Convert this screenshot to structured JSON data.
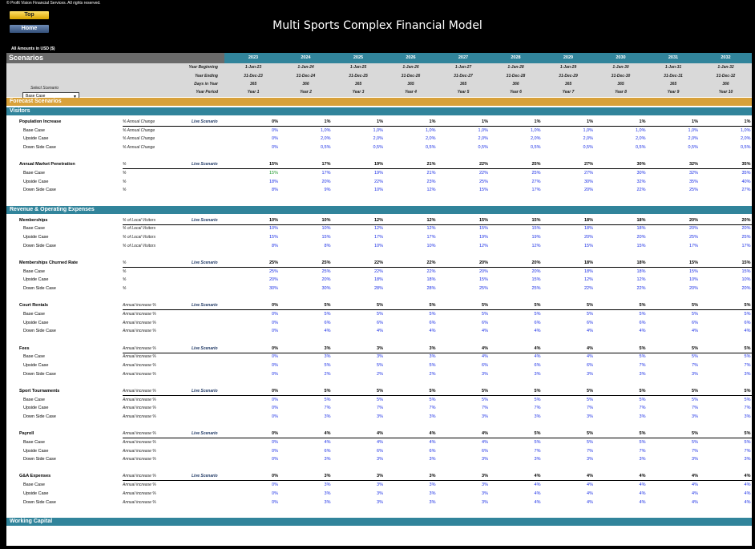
{
  "header": {
    "copyright": "© Profit Vision Financial Services. All rights reserved.",
    "btn_top": "Top",
    "btn_home": "Home",
    "title": "Multi Sports Complex Financial Model",
    "amounts": "All Amounts in  USD ($)"
  },
  "scenarios": {
    "label": "Scenarios",
    "select_label": "Select Scenario",
    "selected": "Base Case",
    "years": [
      "2023",
      "2024",
      "2025",
      "2026",
      "2027",
      "2028",
      "2029",
      "2030",
      "2031",
      "2032"
    ],
    "setup_rows": [
      {
        "label": "Year Beginning",
        "values": [
          "1-Jan-23",
          "1-Jan-24",
          "1-Jan-25",
          "1-Jan-26",
          "1-Jan-27",
          "1-Jan-28",
          "1-Jan-29",
          "1-Jan-30",
          "1-Jan-31",
          "1-Jan-32"
        ]
      },
      {
        "label": "Year Ending",
        "values": [
          "31-Dec-23",
          "31-Dec-24",
          "31-Dec-25",
          "31-Dec-26",
          "31-Dec-27",
          "31-Dec-28",
          "31-Dec-29",
          "31-Dec-30",
          "31-Dec-31",
          "31-Dec-32"
        ]
      },
      {
        "label": "Days in Year",
        "values": [
          "365",
          "366",
          "365",
          "365",
          "365",
          "366",
          "365",
          "365",
          "365",
          "366"
        ]
      },
      {
        "label": "Year Period",
        "values": [
          "Year 1",
          "Year 2",
          "Year 3",
          "Year 4",
          "Year 5",
          "Year 6",
          "Year 7",
          "Year 8",
          "Year 9",
          "Year 10"
        ]
      }
    ]
  },
  "forecast_band": "Forecast Scenarios",
  "sections": [
    {
      "title": "Visitors",
      "blocks": [
        {
          "name": "Population Increase",
          "unit": "% Annual Change",
          "live": "Live Scenario",
          "values": [
            "0%",
            "1%",
            "1%",
            "1%",
            "1%",
            "1%",
            "1%",
            "1%",
            "1%",
            "1%"
          ],
          "rows": [
            {
              "name": "Base Case",
              "unit": "% Annual Change",
              "values": [
                "0%",
                "1,0%",
                "1,0%",
                "1,0%",
                "1,0%",
                "1,0%",
                "1,0%",
                "1,0%",
                "1,0%",
                "1,0%"
              ]
            },
            {
              "name": "Upside Case",
              "unit": "% Annual Change",
              "values": [
                "0%",
                "2,0%",
                "2,0%",
                "2,0%",
                "2,0%",
                "2,0%",
                "2,0%",
                "2,0%",
                "2,0%",
                "2,0%"
              ]
            },
            {
              "name": "Down Side Case",
              "unit": "% Annual Change",
              "values": [
                "0%",
                "0,5%",
                "0,5%",
                "0,5%",
                "0,5%",
                "0,5%",
                "0,5%",
                "0,5%",
                "0,5%",
                "0,5%"
              ]
            }
          ]
        },
        {
          "name": "Annual Market Penetration",
          "unit": "%",
          "live": "Live Scenario",
          "values": [
            "15%",
            "17%",
            "19%",
            "21%",
            "22%",
            "25%",
            "27%",
            "30%",
            "32%",
            "35%"
          ],
          "rows": [
            {
              "name": "Base Case",
              "unit": "%",
              "values": [
                "15%",
                "17%",
                "19%",
                "21%",
                "22%",
                "25%",
                "27%",
                "30%",
                "32%",
                "35%"
              ]
            },
            {
              "name": "Upside Case",
              "unit": "%",
              "values": [
                "18%",
                "20%",
                "22%",
                "23%",
                "25%",
                "27%",
                "30%",
                "32%",
                "35%",
                "40%"
              ]
            },
            {
              "name": "Down Side Case",
              "unit": "%",
              "values": [
                "8%",
                "9%",
                "10%",
                "12%",
                "15%",
                "17%",
                "20%",
                "22%",
                "25%",
                "27%"
              ]
            }
          ]
        }
      ]
    },
    {
      "title": "Revenue & Operating Expenses",
      "blocks": [
        {
          "name": "Memberships",
          "unit": "% of Local Visitors",
          "live": "Live Scenario",
          "values": [
            "10%",
            "10%",
            "12%",
            "12%",
            "15%",
            "15%",
            "18%",
            "18%",
            "20%",
            "20%"
          ],
          "rows": [
            {
              "name": "Base Case",
              "unit": "% of Local Visitors",
              "values": [
                "10%",
                "10%",
                "12%",
                "12%",
                "15%",
                "15%",
                "18%",
                "18%",
                "20%",
                "20%"
              ]
            },
            {
              "name": "Upside Case",
              "unit": "% of Local Visitors",
              "values": [
                "15%",
                "15%",
                "17%",
                "17%",
                "19%",
                "19%",
                "20%",
                "20%",
                "25%",
                "25%"
              ]
            },
            {
              "name": "Down Side Case",
              "unit": "% of Local Visitors",
              "values": [
                "8%",
                "8%",
                "10%",
                "10%",
                "12%",
                "12%",
                "15%",
                "15%",
                "17%",
                "17%"
              ]
            }
          ]
        },
        {
          "name": "Memberships Churned Rate",
          "unit": "%",
          "live": "Live Scenario",
          "values": [
            "25%",
            "25%",
            "22%",
            "22%",
            "20%",
            "20%",
            "18%",
            "18%",
            "15%",
            "15%"
          ],
          "rows": [
            {
              "name": "Base Case",
              "unit": "%",
              "values": [
                "25%",
                "25%",
                "22%",
                "22%",
                "20%",
                "20%",
                "18%",
                "18%",
                "15%",
                "15%"
              ]
            },
            {
              "name": "Upside Case",
              "unit": "%",
              "values": [
                "20%",
                "20%",
                "18%",
                "18%",
                "15%",
                "15%",
                "12%",
                "12%",
                "10%",
                "10%"
              ]
            },
            {
              "name": "Down Side Case",
              "unit": "%",
              "values": [
                "30%",
                "30%",
                "28%",
                "28%",
                "25%",
                "25%",
                "22%",
                "22%",
                "20%",
                "20%"
              ]
            }
          ]
        },
        {
          "name": "Court Rentals",
          "unit": "Annual increase %",
          "live": "Live Scenario",
          "values": [
            "0%",
            "5%",
            "5%",
            "5%",
            "5%",
            "5%",
            "5%",
            "5%",
            "5%",
            "5%"
          ],
          "rows": [
            {
              "name": "Base Case",
              "unit": "Annual increase %",
              "values": [
                "0%",
                "5%",
                "5%",
                "5%",
                "5%",
                "5%",
                "5%",
                "5%",
                "5%",
                "5%"
              ]
            },
            {
              "name": "Upside Case",
              "unit": "Annual increase %",
              "values": [
                "0%",
                "6%",
                "6%",
                "6%",
                "6%",
                "6%",
                "6%",
                "6%",
                "6%",
                "6%"
              ]
            },
            {
              "name": "Down Side Case",
              "unit": "Annual increase %",
              "values": [
                "0%",
                "4%",
                "4%",
                "4%",
                "4%",
                "4%",
                "4%",
                "4%",
                "4%",
                "4%"
              ]
            }
          ]
        },
        {
          "name": "Fees",
          "unit": "Annual increase %",
          "live": "Live Scenario",
          "values": [
            "0%",
            "3%",
            "3%",
            "3%",
            "4%",
            "4%",
            "4%",
            "5%",
            "5%",
            "5%"
          ],
          "rows": [
            {
              "name": "Base Case",
              "unit": "Annual increase %",
              "values": [
                "0%",
                "3%",
                "3%",
                "3%",
                "4%",
                "4%",
                "4%",
                "5%",
                "5%",
                "5%"
              ]
            },
            {
              "name": "Upside Case",
              "unit": "Annual increase %",
              "values": [
                "0%",
                "5%",
                "5%",
                "5%",
                "6%",
                "6%",
                "6%",
                "7%",
                "7%",
                "7%"
              ]
            },
            {
              "name": "Down Side Case",
              "unit": "Annual increase %",
              "values": [
                "0%",
                "2%",
                "2%",
                "2%",
                "3%",
                "3%",
                "3%",
                "3%",
                "3%",
                "3%"
              ]
            }
          ]
        },
        {
          "name": "Sport Tournaments",
          "unit": "Annual increase %",
          "live": "Live Scenario",
          "values": [
            "0%",
            "5%",
            "5%",
            "5%",
            "5%",
            "5%",
            "5%",
            "5%",
            "5%",
            "5%"
          ],
          "rows": [
            {
              "name": "Base Case",
              "unit": "Annual increase %",
              "values": [
                "0%",
                "5%",
                "5%",
                "5%",
                "5%",
                "5%",
                "5%",
                "5%",
                "5%",
                "5%"
              ]
            },
            {
              "name": "Upside Case",
              "unit": "Annual increase %",
              "values": [
                "0%",
                "7%",
                "7%",
                "7%",
                "7%",
                "7%",
                "7%",
                "7%",
                "7%",
                "7%"
              ]
            },
            {
              "name": "Down Side Case",
              "unit": "Annual increase %",
              "values": [
                "0%",
                "3%",
                "3%",
                "3%",
                "3%",
                "3%",
                "3%",
                "3%",
                "3%",
                "3%"
              ]
            }
          ]
        },
        {
          "name": "Payroll",
          "unit": "Annual increase %",
          "live": "Live Scenario",
          "values": [
            "0%",
            "4%",
            "4%",
            "4%",
            "4%",
            "5%",
            "5%",
            "5%",
            "5%",
            "5%"
          ],
          "rows": [
            {
              "name": "Base Case",
              "unit": "Annual increase %",
              "values": [
                "0%",
                "4%",
                "4%",
                "4%",
                "4%",
                "5%",
                "5%",
                "5%",
                "5%",
                "5%"
              ]
            },
            {
              "name": "Upside Case",
              "unit": "Annual increase %",
              "values": [
                "0%",
                "6%",
                "6%",
                "6%",
                "6%",
                "7%",
                "7%",
                "7%",
                "7%",
                "7%"
              ]
            },
            {
              "name": "Down Side Case",
              "unit": "Annual increase %",
              "values": [
                "0%",
                "3%",
                "3%",
                "3%",
                "3%",
                "3%",
                "3%",
                "3%",
                "3%",
                "3%"
              ]
            }
          ]
        },
        {
          "name": "G&A Expenses",
          "unit": "Annual increase %",
          "live": "Live Scenario",
          "values": [
            "0%",
            "3%",
            "3%",
            "3%",
            "3%",
            "4%",
            "4%",
            "4%",
            "4%",
            "4%"
          ],
          "rows": [
            {
              "name": "Base Case",
              "unit": "Annual increase %",
              "values": [
                "0%",
                "3%",
                "3%",
                "3%",
                "3%",
                "4%",
                "4%",
                "4%",
                "4%",
                "4%"
              ]
            },
            {
              "name": "Upside Case",
              "unit": "Annual increase %",
              "values": [
                "0%",
                "3%",
                "3%",
                "3%",
                "3%",
                "4%",
                "4%",
                "4%",
                "4%",
                "4%"
              ]
            },
            {
              "name": "Down Side Case",
              "unit": "Annual increase %",
              "values": [
                "0%",
                "3%",
                "3%",
                "3%",
                "3%",
                "4%",
                "4%",
                "4%",
                "4%",
                "4%"
              ]
            }
          ]
        }
      ]
    },
    {
      "title": "Working Capital",
      "blocks": []
    }
  ],
  "colors": {
    "header_teal": "#31849b",
    "forecast_gold": "#d8a13a",
    "input_blue": "#1a2ee6",
    "highlight_green": "#1f9a2b"
  }
}
